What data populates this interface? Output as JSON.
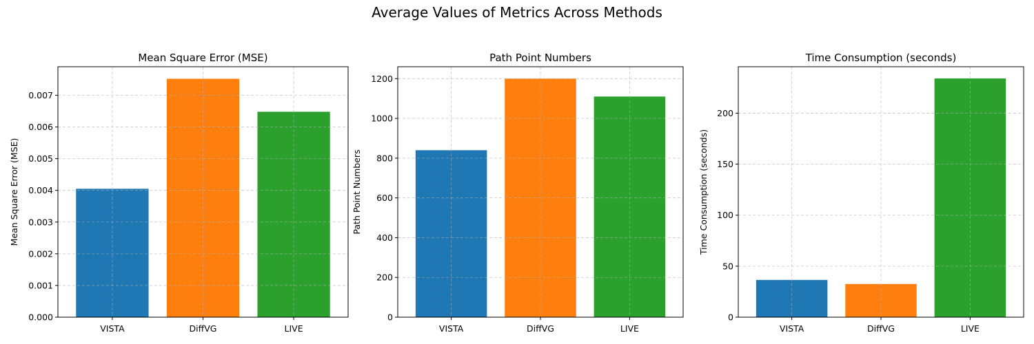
{
  "figure": {
    "title": "Average Values of Metrics Across Methods"
  },
  "colors": {
    "VISTA": "#1f77b4",
    "DiffVG": "#ff7f0e",
    "LIVE": "#2ca02c",
    "grid": "#b0b0b0"
  },
  "chart_data": [
    {
      "type": "bar",
      "title": "Mean Square Error (MSE)",
      "xlabel": "",
      "ylabel": "Mean Square Error (MSE)",
      "categories": [
        "VISTA",
        "DiffVG",
        "LIVE"
      ],
      "values": [
        0.00405,
        0.00752,
        0.00648
      ],
      "ylim": [
        0,
        0.0079
      ],
      "yticks": [
        0.0,
        0.001,
        0.002,
        0.003,
        0.004,
        0.005,
        0.006,
        0.007
      ],
      "ytick_labels": [
        "0.000",
        "0.001",
        "0.002",
        "0.003",
        "0.004",
        "0.005",
        "0.006",
        "0.007"
      ],
      "grid": true
    },
    {
      "type": "bar",
      "title": "Path Point Numbers",
      "xlabel": "",
      "ylabel": "Path Point Numbers",
      "categories": [
        "VISTA",
        "DiffVG",
        "LIVE"
      ],
      "values": [
        840,
        1200,
        1110
      ],
      "ylim": [
        0,
        1260
      ],
      "yticks": [
        0,
        200,
        400,
        600,
        800,
        1000,
        1200
      ],
      "ytick_labels": [
        "0",
        "200",
        "400",
        "600",
        "800",
        "1000",
        "1200"
      ],
      "grid": true
    },
    {
      "type": "bar",
      "title": "Time Consumption (seconds)",
      "xlabel": "",
      "ylabel": "Time Consumption (seconds)",
      "categories": [
        "VISTA",
        "DiffVG",
        "LIVE"
      ],
      "values": [
        36.5,
        32.5,
        234
      ],
      "ylim": [
        0,
        245.5
      ],
      "yticks": [
        0,
        50,
        100,
        150,
        200
      ],
      "ytick_labels": [
        "0",
        "50",
        "100",
        "150",
        "200"
      ],
      "grid": true
    }
  ]
}
